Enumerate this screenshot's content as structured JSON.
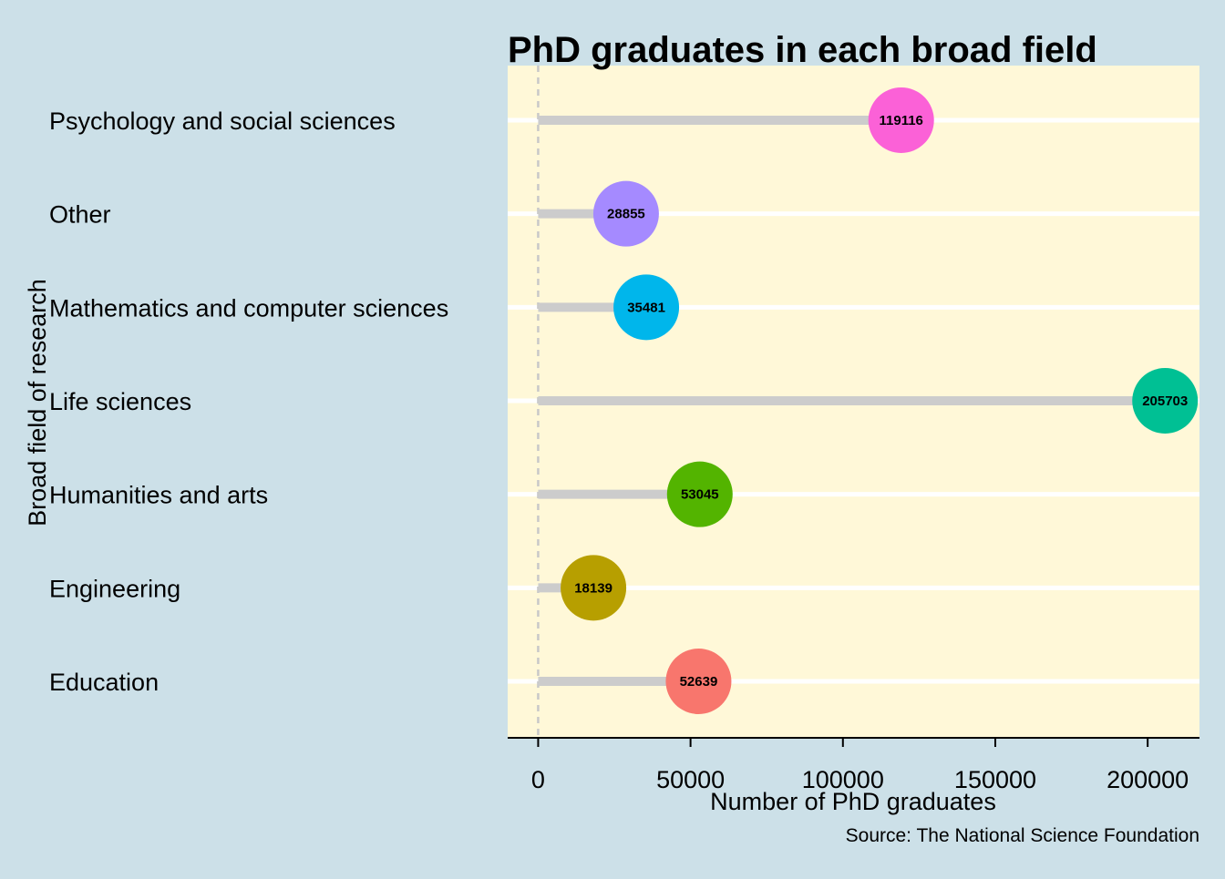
{
  "chart_data": {
    "type": "lollipop",
    "title": "PhD graduates in each broad field",
    "xlabel": "Number of PhD graduates",
    "ylabel": "Broad field of research",
    "caption": "Source: The National Science Foundation",
    "xlim": [
      -10000,
      217000
    ],
    "xticks": [
      0,
      50000,
      100000,
      150000,
      200000
    ],
    "xtick_labels": [
      "0",
      "50000",
      "100000",
      "150000",
      "200000"
    ],
    "categories": [
      "Education",
      "Engineering",
      "Humanities and arts",
      "Life sciences",
      "Mathematics and computer sciences",
      "Other",
      "Psychology and social sciences"
    ],
    "values": [
      52639,
      18139,
      53045,
      205703,
      35481,
      28855,
      119116
    ],
    "colors": [
      "#F8766D",
      "#B79F00",
      "#53B400",
      "#00C094",
      "#00B6EB",
      "#A58AFF",
      "#FB61D7"
    ],
    "reference_line": 0,
    "panel_background": "#fff8d8",
    "plot_background": "#cce0e8",
    "grid": "horizontal"
  }
}
